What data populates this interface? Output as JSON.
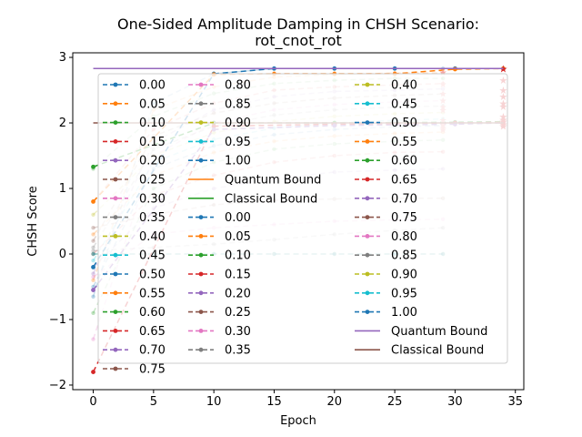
{
  "chart_data": {
    "type": "line",
    "title": "One-Sided Amplitude Damping in CHSH Scenario:",
    "subtitle": "rot_cnot_rot",
    "xlabel": "Epoch",
    "ylabel": "CHSH Score",
    "xlim": [
      -1.7,
      35.7
    ],
    "ylim": [
      -2.07,
      3.07
    ],
    "xticks": [
      0,
      5,
      10,
      15,
      20,
      25,
      30,
      35
    ],
    "yticks": [
      -2,
      -1,
      0,
      1,
      2,
      3
    ],
    "grid": false,
    "legend_position": "center",
    "legend_columns": [
      [
        "0.00",
        "0.05",
        "0.10",
        "0.15",
        "0.20",
        "0.25",
        "0.30",
        "0.35",
        "0.40",
        "0.45",
        "0.50",
        "0.55",
        "0.60",
        "0.65",
        "0.70",
        "0.75"
      ],
      [
        "0.80",
        "0.85",
        "0.90",
        "0.95",
        "1.00",
        "Quantum Bound",
        "Classical Bound",
        "0.00",
        "0.05",
        "0.10",
        "0.15",
        "0.20",
        "0.25",
        "0.30",
        "0.35"
      ],
      [
        "0.40",
        "0.45",
        "0.50",
        "0.55",
        "0.60",
        "0.65",
        "0.70",
        "0.75",
        "0.80",
        "0.85",
        "0.90",
        "0.95",
        "1.00",
        "Quantum Bound",
        "Classical Bound"
      ]
    ],
    "quantum_bound": 2.83,
    "classical_bound": 2.0,
    "series_faint": [
      {
        "name": "0.00",
        "x": [
          0,
          5,
          10,
          15,
          20,
          25,
          29
        ],
        "y": [
          -0.65,
          2.3,
          2.75,
          2.83,
          2.83,
          2.83,
          2.83
        ]
      },
      {
        "name": "0.05",
        "x": [
          0,
          5,
          10,
          15,
          20,
          25,
          29
        ],
        "y": [
          -0.4,
          2.2,
          2.55,
          2.7,
          2.74,
          2.76,
          2.76
        ]
      },
      {
        "name": "0.10",
        "x": [
          0,
          5,
          10,
          15,
          20,
          25,
          29
        ],
        "y": [
          1.3,
          2.1,
          2.45,
          2.6,
          2.65,
          2.68,
          2.68
        ]
      },
      {
        "name": "0.15",
        "x": [
          0,
          5,
          10,
          15,
          20,
          25,
          29
        ],
        "y": [
          0.8,
          1.9,
          2.3,
          2.5,
          2.55,
          2.58,
          2.6
        ]
      },
      {
        "name": "0.20",
        "x": [
          0,
          5,
          10,
          15,
          20,
          25,
          29
        ],
        "y": [
          -0.3,
          1.7,
          2.2,
          2.4,
          2.48,
          2.5,
          2.52
        ]
      },
      {
        "name": "0.25",
        "x": [
          0,
          5,
          10,
          15,
          20,
          25,
          29
        ],
        "y": [
          0.2,
          1.8,
          2.15,
          2.3,
          2.38,
          2.42,
          2.44
        ]
      },
      {
        "name": "0.30",
        "x": [
          0,
          5,
          10,
          15,
          20,
          25,
          29
        ],
        "y": [
          -1.3,
          1.5,
          2.0,
          2.2,
          2.28,
          2.32,
          2.34
        ]
      },
      {
        "name": "0.35",
        "x": [
          0,
          5,
          10,
          15,
          20,
          25,
          29
        ],
        "y": [
          0.1,
          1.6,
          1.95,
          2.12,
          2.2,
          2.24,
          2.26
        ]
      },
      {
        "name": "0.40",
        "x": [
          0,
          5,
          10,
          15,
          20,
          25,
          29
        ],
        "y": [
          0.6,
          1.5,
          1.85,
          2.02,
          2.1,
          2.14,
          2.16
        ]
      },
      {
        "name": "0.45",
        "x": [
          0,
          5,
          10,
          15,
          20,
          25,
          29
        ],
        "y": [
          -0.1,
          1.4,
          1.75,
          1.92,
          2.0,
          2.04,
          2.06
        ]
      },
      {
        "name": "0.50",
        "x": [
          0,
          5,
          10,
          15,
          20,
          25,
          29
        ],
        "y": [
          -0.5,
          1.3,
          1.65,
          1.82,
          1.9,
          1.94,
          1.96
        ]
      },
      {
        "name": "0.55",
        "x": [
          0,
          5,
          10,
          15,
          20,
          25,
          29
        ],
        "y": [
          0.3,
          1.2,
          1.55,
          1.72,
          1.8,
          1.84,
          1.86
        ]
      },
      {
        "name": "0.60",
        "x": [
          0,
          5,
          10,
          15,
          20,
          25,
          29
        ],
        "y": [
          -0.9,
          1.0,
          1.4,
          1.6,
          1.68,
          1.72,
          1.74
        ]
      },
      {
        "name": "0.65",
        "x": [
          0,
          5,
          10,
          15,
          20,
          25,
          29
        ],
        "y": [
          0.0,
          0.9,
          1.2,
          1.4,
          1.5,
          1.55,
          1.56
        ]
      },
      {
        "name": "0.70",
        "x": [
          0,
          5,
          10,
          15,
          20,
          25,
          29
        ],
        "y": [
          -0.2,
          0.7,
          1.0,
          1.15,
          1.25,
          1.28,
          1.3
        ]
      },
      {
        "name": "0.75",
        "x": [
          0,
          5,
          10,
          15,
          20,
          25,
          29
        ],
        "y": [
          0.4,
          0.6,
          0.75,
          0.82,
          0.84,
          0.85,
          0.85
        ]
      },
      {
        "name": "0.80",
        "x": [
          0,
          5,
          10,
          15,
          20,
          25,
          29
        ],
        "y": [
          -0.35,
          0.3,
          0.4,
          0.45,
          0.5,
          0.52,
          0.53
        ]
      },
      {
        "name": "0.85",
        "x": [
          0,
          5,
          10,
          15,
          20,
          25,
          29
        ],
        "y": [
          0.05,
          0.1,
          0.15,
          0.22,
          0.3,
          0.36,
          0.4
        ]
      },
      {
        "name": "0.90",
        "x": [
          0,
          5,
          10,
          15,
          20,
          25,
          29
        ],
        "y": [
          0.0,
          0.0,
          0.0,
          0.0,
          0.0,
          0.0,
          0.0
        ]
      },
      {
        "name": "0.95",
        "x": [
          0,
          5,
          10,
          15,
          20,
          25,
          29
        ],
        "y": [
          0.0,
          0.0,
          0.0,
          0.0,
          0.0,
          0.0,
          0.0
        ]
      },
      {
        "name": "1.00",
        "x": [
          0,
          5,
          10,
          15,
          20,
          25,
          29
        ],
        "y": [
          0.0,
          0.0,
          0.0,
          0.0,
          0.0,
          0.0,
          0.0
        ]
      }
    ],
    "series_bold": [
      {
        "name": "0.00",
        "x": [
          0,
          10,
          15,
          20,
          25,
          30,
          34
        ],
        "y": [
          -0.2,
          2.75,
          2.83,
          2.83,
          2.83,
          2.83,
          2.83
        ]
      },
      {
        "name": "0.05",
        "x": [
          0,
          10,
          15,
          20,
          25,
          30,
          34
        ],
        "y": [
          0.8,
          2.74,
          2.75,
          2.75,
          2.75,
          2.82,
          2.83
        ]
      },
      {
        "name": "0.10",
        "x": [
          0,
          10,
          20,
          30,
          34
        ],
        "y": [
          1.33,
          2.0,
          2.0,
          2.01,
          2.02
        ]
      },
      {
        "name": "0.15",
        "x": [
          0,
          10,
          20,
          30,
          34
        ],
        "y": [
          -1.8,
          1.95,
          1.98,
          2.0,
          2.01
        ]
      },
      {
        "name": "0.20",
        "x": [
          0,
          10,
          20,
          30,
          34
        ],
        "y": [
          -0.55,
          1.9,
          1.96,
          1.98,
          2.0
        ]
      }
    ],
    "markers_end": [
      2.83,
      2.65,
      2.5,
      2.4,
      2.3,
      2.25,
      2.1,
      2.05,
      2.02,
      1.98,
      1.95
    ]
  }
}
